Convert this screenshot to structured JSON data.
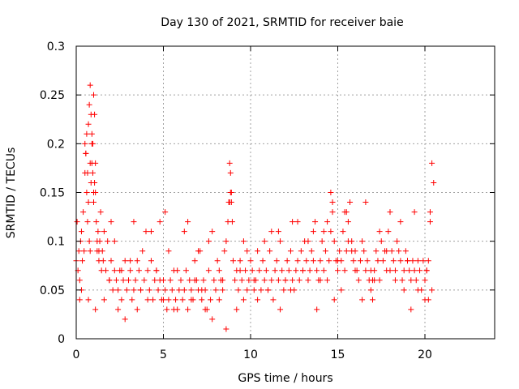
{
  "chart_data": {
    "type": "scatter",
    "title": "Day 130 of 2021, SRMTID for receiver baie",
    "xlabel": "GPS time / hours",
    "ylabel": "SRMTID / TECUs",
    "xlim": [
      0,
      24
    ],
    "ylim": [
      0,
      0.3
    ],
    "xticks": [
      0,
      5,
      10,
      15,
      20
    ],
    "xtick_labels": [
      "0",
      "5",
      "10",
      "15",
      "20"
    ],
    "yticks": [
      0,
      0.05,
      0.1,
      0.15,
      0.2,
      0.25,
      0.3
    ],
    "ytick_labels": [
      "0",
      "0.05",
      "0.1",
      "0.15",
      "0.2",
      "0.25",
      "0.3"
    ],
    "grid": true,
    "marker": "+",
    "color": "#ff0000",
    "series": [
      {
        "name": "SRMTID",
        "x": [
          0.0,
          0.05,
          0.1,
          0.15,
          0.2,
          0.25,
          0.3,
          0.35,
          0.4,
          0.45,
          0.5,
          0.55,
          0.6,
          0.65,
          0.7,
          0.75,
          0.8,
          0.85,
          0.9,
          0.95,
          1.0,
          1.05,
          1.1,
          1.15,
          1.2,
          1.25,
          1.3,
          1.35,
          1.4,
          1.45,
          1.5,
          1.55,
          1.6,
          1.7,
          1.8,
          1.9,
          2.0,
          2.1,
          2.2,
          2.3,
          2.4,
          2.5,
          2.6,
          2.7,
          2.8,
          2.9,
          3.0,
          3.1,
          3.2,
          3.3,
          3.4,
          3.5,
          3.6,
          3.7,
          3.8,
          3.9,
          4.0,
          4.1,
          4.2,
          4.3,
          4.4,
          4.5,
          4.6,
          4.7,
          4.8,
          4.9,
          5.0,
          5.1,
          5.2,
          5.3,
          5.4,
          5.5,
          5.6,
          5.7,
          5.8,
          5.9,
          6.0,
          6.1,
          6.2,
          6.3,
          6.4,
          6.5,
          6.6,
          6.7,
          6.8,
          6.9,
          7.0,
          7.1,
          7.2,
          7.3,
          7.4,
          7.5,
          7.6,
          7.7,
          7.8,
          7.9,
          8.0,
          8.1,
          8.2,
          8.3,
          8.4,
          8.5,
          8.6,
          8.7,
          8.75,
          8.8,
          8.85,
          8.9,
          8.95,
          9.0,
          9.1,
          9.2,
          9.3,
          9.4,
          9.5,
          9.6,
          9.7,
          9.8,
          9.9,
          10.0,
          10.1,
          10.2,
          10.3,
          10.4,
          10.5,
          10.6,
          10.7,
          10.8,
          10.9,
          11.0,
          11.1,
          11.2,
          11.3,
          11.4,
          11.5,
          11.6,
          11.7,
          11.8,
          11.9,
          12.0,
          12.1,
          12.2,
          12.3,
          12.4,
          12.5,
          12.6,
          12.7,
          12.8,
          12.9,
          13.0,
          13.1,
          13.2,
          13.3,
          13.4,
          13.5,
          13.6,
          13.7,
          13.8,
          13.9,
          14.0,
          14.1,
          14.2,
          14.3,
          14.4,
          14.5,
          14.6,
          14.7,
          14.8,
          14.9,
          15.0,
          15.1,
          15.2,
          15.3,
          15.4,
          15.5,
          15.6,
          15.7,
          15.8,
          15.9,
          16.0,
          16.1,
          16.2,
          16.3,
          16.4,
          16.5,
          16.6,
          16.7,
          16.8,
          16.9,
          17.0,
          17.1,
          17.2,
          17.3,
          17.4,
          17.5,
          17.6,
          17.7,
          17.8,
          17.9,
          18.0,
          18.1,
          18.2,
          18.3,
          18.4,
          18.5,
          18.6,
          18.7,
          18.8,
          18.9,
          19.0,
          19.1,
          19.2,
          19.3,
          19.4,
          19.5,
          19.6,
          19.7,
          19.8,
          19.9,
          20.0,
          20.1,
          20.2,
          20.3,
          20.4,
          20.5,
          0.5,
          0.6,
          0.7,
          0.75,
          0.8,
          0.85,
          0.9,
          0.95,
          1.0,
          1.05,
          1.1,
          0.55,
          0.65,
          0.9,
          1.0,
          8.8,
          8.85,
          8.9,
          14.6,
          14.7,
          15.5,
          15.6,
          17.8,
          1.2,
          2.0,
          3.1,
          4.6,
          5.3,
          6.2,
          7.0,
          9.6,
          11.2,
          12.7,
          13.3,
          14.2,
          15.8,
          16.9,
          18.3,
          19.6,
          20.2,
          0.3,
          0.7,
          1.1,
          1.6,
          2.4,
          2.8,
          3.5,
          4.1,
          5.0,
          5.6,
          6.6,
          7.4,
          8.2,
          9.2,
          10.4,
          11.7,
          12.3,
          13.8,
          14.8,
          15.2,
          16.4,
          17.1,
          18.8,
          19.2,
          20.0,
          20.4,
          0.2,
          1.3,
          2.2,
          3.3,
          4.3,
          5.1,
          6.4,
          7.6,
          7.8,
          8.6,
          9.8,
          10.8,
          11.6,
          12.4,
          13.6,
          14.4,
          15.4,
          16.6,
          17.4,
          18.6,
          19.4,
          20.3,
          0.8,
          1.9,
          2.6,
          3.7,
          4.8,
          5.8,
          6.8,
          7.2,
          8.4,
          9.4,
          10.2,
          11.0,
          12.0,
          13.0,
          14.0,
          15.0,
          16.0,
          17.0,
          18.0,
          19.0,
          20.1
        ],
        "y": [
          0.08,
          0.12,
          0.07,
          0.09,
          0.06,
          0.1,
          0.11,
          0.08,
          0.13,
          0.09,
          0.17,
          0.19,
          0.15,
          0.12,
          0.14,
          0.1,
          0.18,
          0.16,
          0.21,
          0.2,
          0.25,
          0.23,
          0.18,
          0.12,
          0.09,
          0.11,
          0.08,
          0.1,
          0.13,
          0.07,
          0.09,
          0.08,
          0.11,
          0.07,
          0.1,
          0.06,
          0.08,
          0.05,
          0.07,
          0.06,
          0.05,
          0.07,
          0.04,
          0.06,
          0.08,
          0.05,
          0.06,
          0.07,
          0.04,
          0.05,
          0.06,
          0.08,
          0.07,
          0.05,
          0.09,
          0.06,
          0.11,
          0.07,
          0.05,
          0.08,
          0.04,
          0.06,
          0.07,
          0.05,
          0.12,
          0.04,
          0.06,
          0.05,
          0.03,
          0.04,
          0.06,
          0.05,
          0.07,
          0.04,
          0.03,
          0.05,
          0.06,
          0.04,
          0.05,
          0.07,
          0.03,
          0.06,
          0.05,
          0.04,
          0.08,
          0.06,
          0.05,
          0.09,
          0.04,
          0.06,
          0.05,
          0.03,
          0.07,
          0.04,
          0.02,
          0.06,
          0.05,
          0.08,
          0.07,
          0.06,
          0.05,
          0.09,
          0.1,
          0.12,
          0.14,
          0.18,
          0.17,
          0.15,
          0.12,
          0.08,
          0.06,
          0.07,
          0.05,
          0.08,
          0.06,
          0.04,
          0.07,
          0.05,
          0.06,
          0.08,
          0.07,
          0.05,
          0.06,
          0.09,
          0.07,
          0.05,
          0.08,
          0.06,
          0.07,
          0.05,
          0.09,
          0.06,
          0.04,
          0.07,
          0.08,
          0.06,
          0.1,
          0.07,
          0.05,
          0.06,
          0.08,
          0.07,
          0.09,
          0.06,
          0.05,
          0.07,
          0.08,
          0.06,
          0.09,
          0.07,
          0.1,
          0.08,
          0.06,
          0.07,
          0.09,
          0.08,
          0.12,
          0.07,
          0.06,
          0.08,
          0.1,
          0.07,
          0.09,
          0.06,
          0.08,
          0.11,
          0.13,
          0.1,
          0.08,
          0.07,
          0.09,
          0.08,
          0.11,
          0.07,
          0.09,
          0.12,
          0.14,
          0.1,
          0.08,
          0.09,
          0.07,
          0.06,
          0.08,
          0.1,
          0.09,
          0.07,
          0.08,
          0.06,
          0.05,
          0.04,
          0.07,
          0.09,
          0.08,
          0.06,
          0.1,
          0.08,
          0.09,
          0.07,
          0.11,
          0.13,
          0.09,
          0.08,
          0.07,
          0.1,
          0.09,
          0.08,
          0.06,
          0.07,
          0.09,
          0.08,
          0.07,
          0.06,
          0.08,
          0.07,
          0.06,
          0.08,
          0.07,
          0.05,
          0.08,
          0.06,
          0.07,
          0.08,
          0.13,
          0.18,
          0.16,
          0.2,
          0.21,
          0.22,
          0.24,
          0.26,
          0.23,
          0.2,
          0.17,
          0.14,
          0.16,
          0.15,
          0.19,
          0.17,
          0.18,
          0.15,
          0.14,
          0.15,
          0.14,
          0.15,
          0.14,
          0.13,
          0.1,
          0.09,
          0.1,
          0.12,
          0.08,
          0.07,
          0.09,
          0.11,
          0.09,
          0.1,
          0.11,
          0.12,
          0.1,
          0.11,
          0.09,
          0.07,
          0.06,
          0.05,
          0.04,
          0.05,
          0.04,
          0.03,
          0.04,
          0.03,
          0.02,
          0.03,
          0.04,
          0.04,
          0.03,
          0.04,
          0.03,
          0.04,
          0.03,
          0.04,
          0.03,
          0.05,
          0.03,
          0.04,
          0.05,
          0.04,
          0.06,
          0.05,
          0.03,
          0.04,
          0.05,
          0.04,
          0.09,
          0.1,
          0.12,
          0.11,
          0.13,
          0.12,
          0.1,
          0.11,
          0.01,
          0.09,
          0.1,
          0.11,
          0.12,
          0.11,
          0.12,
          0.13,
          0.14,
          0.11,
          0.12,
          0.13,
          0.12,
          0.09,
          0.06,
          0.07,
          0.05,
          0.06,
          0.07,
          0.06,
          0.05,
          0.06,
          0.07,
          0.06,
          0.05,
          0.06,
          0.07,
          0.06,
          0.08,
          0.07,
          0.06,
          0.07,
          0.08,
          0.07
        ]
      }
    ]
  }
}
